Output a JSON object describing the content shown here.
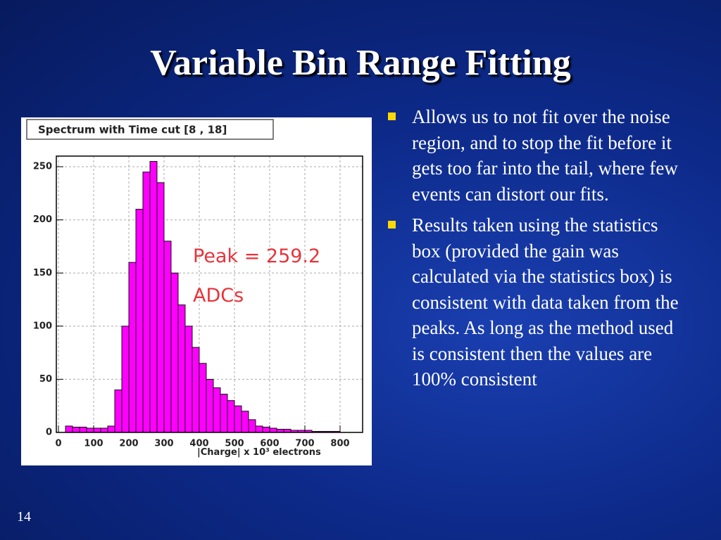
{
  "slide": {
    "title": "Variable Bin Range Fitting",
    "bullets": [
      "Allows us to not fit over the noise region, and to stop the fit before it gets too far into the tail, where few events can distort our fits.",
      "Results taken using the statistics box (provided the gain was calculated via the statistics box) is consistent with data taken from the peaks. As long as the method used is consistent then the values are 100% consistent"
    ],
    "slide_number": "14"
  },
  "chart_data": {
    "type": "histogram",
    "title": "Spectrum with Time cut [8 , 18]",
    "x_label": "|Charge| x 10³ electrons",
    "annotations": [
      "Peak = 259.2",
      "ADCs"
    ],
    "bins": [
      0,
      20,
      40,
      60,
      80,
      100,
      120,
      140,
      160,
      180,
      200,
      220,
      240,
      260,
      280,
      300,
      320,
      340,
      360,
      380,
      400,
      420,
      440,
      460,
      480,
      500,
      520,
      540,
      560,
      580,
      600,
      620,
      640,
      660,
      680,
      700,
      720,
      740,
      760,
      780,
      800
    ],
    "values": [
      0,
      6,
      5,
      5,
      4,
      4,
      4,
      6,
      40,
      100,
      160,
      210,
      245,
      255,
      235,
      180,
      150,
      120,
      100,
      80,
      65,
      50,
      42,
      36,
      30,
      25,
      20,
      12,
      6,
      5,
      4,
      3,
      3,
      2,
      2,
      2,
      1,
      1,
      1,
      1
    ],
    "color": "#ff00ff",
    "xlim": [
      -6,
      864
    ],
    "ylim": [
      0,
      260
    ],
    "xticks": [
      0,
      100,
      200,
      300,
      400,
      500,
      600,
      700,
      800
    ],
    "yticks": [
      0,
      50,
      100,
      150,
      200,
      250
    ],
    "grid": true
  }
}
